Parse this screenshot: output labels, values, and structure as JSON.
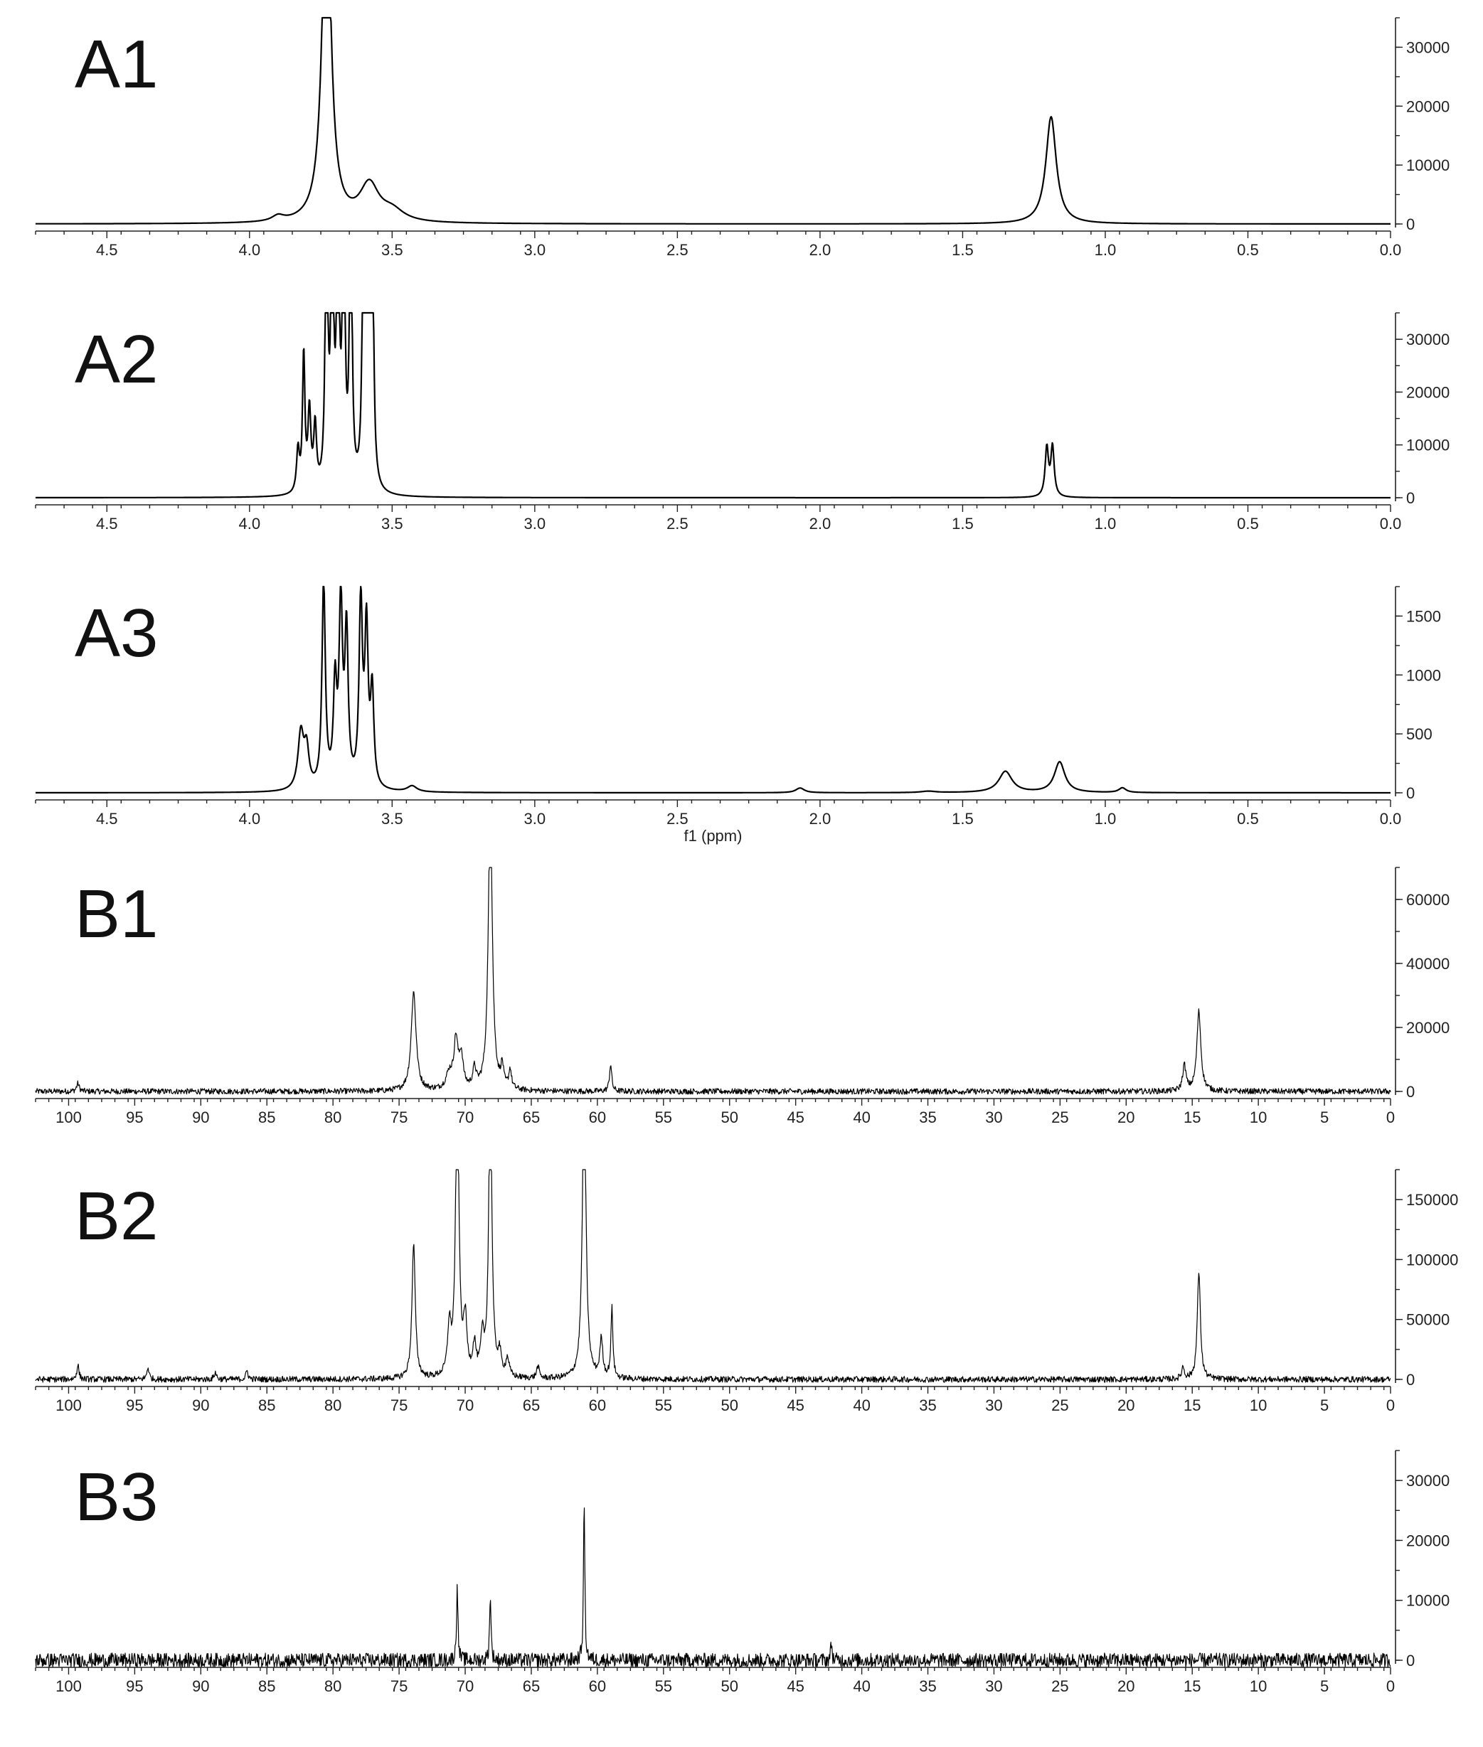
{
  "chart_data": [
    {
      "type": "line",
      "panel_label": "A1",
      "xlabel": "",
      "xlim": [
        4.75,
        0.0
      ],
      "ylim": [
        -1000,
        35000
      ],
      "x_ticks": [
        "4.5",
        "4.0",
        "3.5",
        "3.0",
        "2.5",
        "2.0",
        "1.5",
        "1.0",
        "0.5",
        "0.0"
      ],
      "y_ticks": [
        "0",
        "10000",
        "20000",
        "30000"
      ],
      "peaks": [
        {
          "x": 3.9,
          "y": 900,
          "width": 0.025
        },
        {
          "x": 3.73,
          "y": 60000,
          "width": 0.018
        },
        {
          "x": 3.58,
          "y": 6200,
          "width": 0.04
        },
        {
          "x": 3.5,
          "y": 1800,
          "width": 0.05
        },
        {
          "x": 1.19,
          "y": 18200,
          "width": 0.022
        }
      ]
    },
    {
      "type": "line",
      "panel_label": "A2",
      "xlabel": "",
      "xlim": [
        4.75,
        0.0
      ],
      "ylim": [
        -1000,
        35000
      ],
      "x_ticks": [
        "4.5",
        "4.0",
        "3.5",
        "3.0",
        "2.5",
        "2.0",
        "1.5",
        "1.0",
        "0.5",
        "0.0"
      ],
      "y_ticks": [
        "0",
        "10000",
        "20000",
        "30000"
      ],
      "peaks": [
        {
          "x": 3.83,
          "y": 8000,
          "width": 0.006
        },
        {
          "x": 3.81,
          "y": 26000,
          "width": 0.005
        },
        {
          "x": 3.79,
          "y": 15000,
          "width": 0.006
        },
        {
          "x": 3.77,
          "y": 12000,
          "width": 0.006
        },
        {
          "x": 3.73,
          "y": 60000,
          "width": 0.005
        },
        {
          "x": 3.71,
          "y": 60000,
          "width": 0.005
        },
        {
          "x": 3.69,
          "y": 60000,
          "width": 0.005
        },
        {
          "x": 3.67,
          "y": 60000,
          "width": 0.005
        },
        {
          "x": 3.645,
          "y": 60000,
          "width": 0.005
        },
        {
          "x": 3.6,
          "y": 60000,
          "width": 0.005
        },
        {
          "x": 3.585,
          "y": 60000,
          "width": 0.005
        },
        {
          "x": 3.57,
          "y": 60000,
          "width": 0.005
        },
        {
          "x": 1.205,
          "y": 9200,
          "width": 0.007
        },
        {
          "x": 1.185,
          "y": 9400,
          "width": 0.007
        }
      ]
    },
    {
      "type": "line",
      "panel_label": "A3",
      "xlabel": "f1 (ppm)",
      "xlim": [
        4.75,
        0.0
      ],
      "ylim": [
        -60,
        1750
      ],
      "x_ticks": [
        "4.5",
        "4.0",
        "3.5",
        "3.0",
        "2.5",
        "2.0",
        "1.5",
        "1.0",
        "0.5",
        "0.0"
      ],
      "y_ticks": [
        "0",
        "500",
        "1000",
        "1500"
      ],
      "peaks": [
        {
          "x": 3.82,
          "y": 480,
          "width": 0.012
        },
        {
          "x": 3.8,
          "y": 320,
          "width": 0.01
        },
        {
          "x": 3.74,
          "y": 1750,
          "width": 0.007
        },
        {
          "x": 3.7,
          "y": 840,
          "width": 0.007
        },
        {
          "x": 3.68,
          "y": 1550,
          "width": 0.007
        },
        {
          "x": 3.66,
          "y": 1300,
          "width": 0.007
        },
        {
          "x": 3.61,
          "y": 1570,
          "width": 0.007
        },
        {
          "x": 3.59,
          "y": 1320,
          "width": 0.007
        },
        {
          "x": 3.57,
          "y": 800,
          "width": 0.007
        },
        {
          "x": 3.43,
          "y": 50,
          "width": 0.02
        },
        {
          "x": 2.07,
          "y": 40,
          "width": 0.018
        },
        {
          "x": 1.62,
          "y": 12,
          "width": 0.03
        },
        {
          "x": 1.35,
          "y": 180,
          "width": 0.028
        },
        {
          "x": 1.16,
          "y": 260,
          "width": 0.022
        },
        {
          "x": 0.94,
          "y": 40,
          "width": 0.015
        }
      ]
    },
    {
      "type": "line",
      "panel_label": "B1",
      "xlabel": "",
      "xlim": [
        102.5,
        0.0
      ],
      "ylim": [
        -2500,
        70000
      ],
      "x_ticks": [
        "100",
        "95",
        "90",
        "85",
        "80",
        "75",
        "70",
        "65",
        "60",
        "55",
        "50",
        "45",
        "40",
        "35",
        "30",
        "25",
        "20",
        "15",
        "10",
        "5",
        "0"
      ],
      "y_ticks": [
        "0",
        "20000",
        "40000",
        "60000"
      ],
      "noise_amplitude": 900,
      "peaks": [
        {
          "x": 99.3,
          "y": 2500,
          "width": 0.12
        },
        {
          "x": 73.9,
          "y": 31000,
          "width": 0.22
        },
        {
          "x": 71.2,
          "y": 5000,
          "width": 0.3
        },
        {
          "x": 70.7,
          "y": 15000,
          "width": 0.18
        },
        {
          "x": 70.3,
          "y": 10000,
          "width": 0.18
        },
        {
          "x": 69.3,
          "y": 6000,
          "width": 0.15
        },
        {
          "x": 68.1,
          "y": 90000,
          "width": 0.18
        },
        {
          "x": 67.2,
          "y": 6500,
          "width": 0.12
        },
        {
          "x": 66.6,
          "y": 6000,
          "width": 0.12
        },
        {
          "x": 59.0,
          "y": 8500,
          "width": 0.1
        },
        {
          "x": 15.6,
          "y": 8000,
          "width": 0.15
        },
        {
          "x": 14.5,
          "y": 25000,
          "width": 0.18
        }
      ]
    },
    {
      "type": "line",
      "panel_label": "B2",
      "xlabel": "",
      "xlim": [
        102.5,
        0.0
      ],
      "ylim": [
        -8000,
        175000
      ],
      "x_ticks": [
        "100",
        "95",
        "90",
        "85",
        "80",
        "75",
        "70",
        "65",
        "60",
        "55",
        "50",
        "45",
        "40",
        "35",
        "30",
        "25",
        "20",
        "15",
        "10",
        "5",
        "0"
      ],
      "y_ticks": [
        "0",
        "50000",
        "100000",
        "150000"
      ],
      "noise_amplitude": 2500,
      "peaks": [
        {
          "x": 99.3,
          "y": 12000,
          "width": 0.1
        },
        {
          "x": 94.0,
          "y": 10000,
          "width": 0.1
        },
        {
          "x": 88.9,
          "y": 6000,
          "width": 0.1
        },
        {
          "x": 86.5,
          "y": 7000,
          "width": 0.1
        },
        {
          "x": 73.9,
          "y": 112000,
          "width": 0.15
        },
        {
          "x": 71.2,
          "y": 40000,
          "width": 0.15
        },
        {
          "x": 70.6,
          "y": 250000,
          "width": 0.15
        },
        {
          "x": 70.0,
          "y": 45000,
          "width": 0.15
        },
        {
          "x": 69.3,
          "y": 25000,
          "width": 0.15
        },
        {
          "x": 68.7,
          "y": 30000,
          "width": 0.15
        },
        {
          "x": 68.1,
          "y": 250000,
          "width": 0.14
        },
        {
          "x": 67.4,
          "y": 18000,
          "width": 0.15
        },
        {
          "x": 66.8,
          "y": 15000,
          "width": 0.15
        },
        {
          "x": 64.5,
          "y": 10000,
          "width": 0.12
        },
        {
          "x": 61.0,
          "y": 250000,
          "width": 0.16
        },
        {
          "x": 59.7,
          "y": 32000,
          "width": 0.13
        },
        {
          "x": 58.9,
          "y": 58000,
          "width": 0.09
        },
        {
          "x": 15.7,
          "y": 10000,
          "width": 0.12
        },
        {
          "x": 14.5,
          "y": 90000,
          "width": 0.14
        }
      ]
    },
    {
      "type": "line",
      "panel_label": "B3",
      "xlabel": "",
      "xlim": [
        102.5,
        0.0
      ],
      "ylim": [
        -2500,
        35000
      ],
      "x_ticks": [
        "100",
        "95",
        "90",
        "85",
        "80",
        "75",
        "70",
        "65",
        "60",
        "55",
        "50",
        "45",
        "40",
        "35",
        "30",
        "25",
        "20",
        "15",
        "10",
        "5",
        "0"
      ],
      "y_ticks": [
        "0",
        "10000",
        "20000",
        "30000"
      ],
      "noise_amplitude": 1200,
      "peaks": [
        {
          "x": 70.6,
          "y": 13200,
          "width": 0.06
        },
        {
          "x": 68.1,
          "y": 11500,
          "width": 0.06
        },
        {
          "x": 61.0,
          "y": 27000,
          "width": 0.06
        },
        {
          "x": 42.3,
          "y": 3000,
          "width": 0.06
        }
      ]
    }
  ]
}
